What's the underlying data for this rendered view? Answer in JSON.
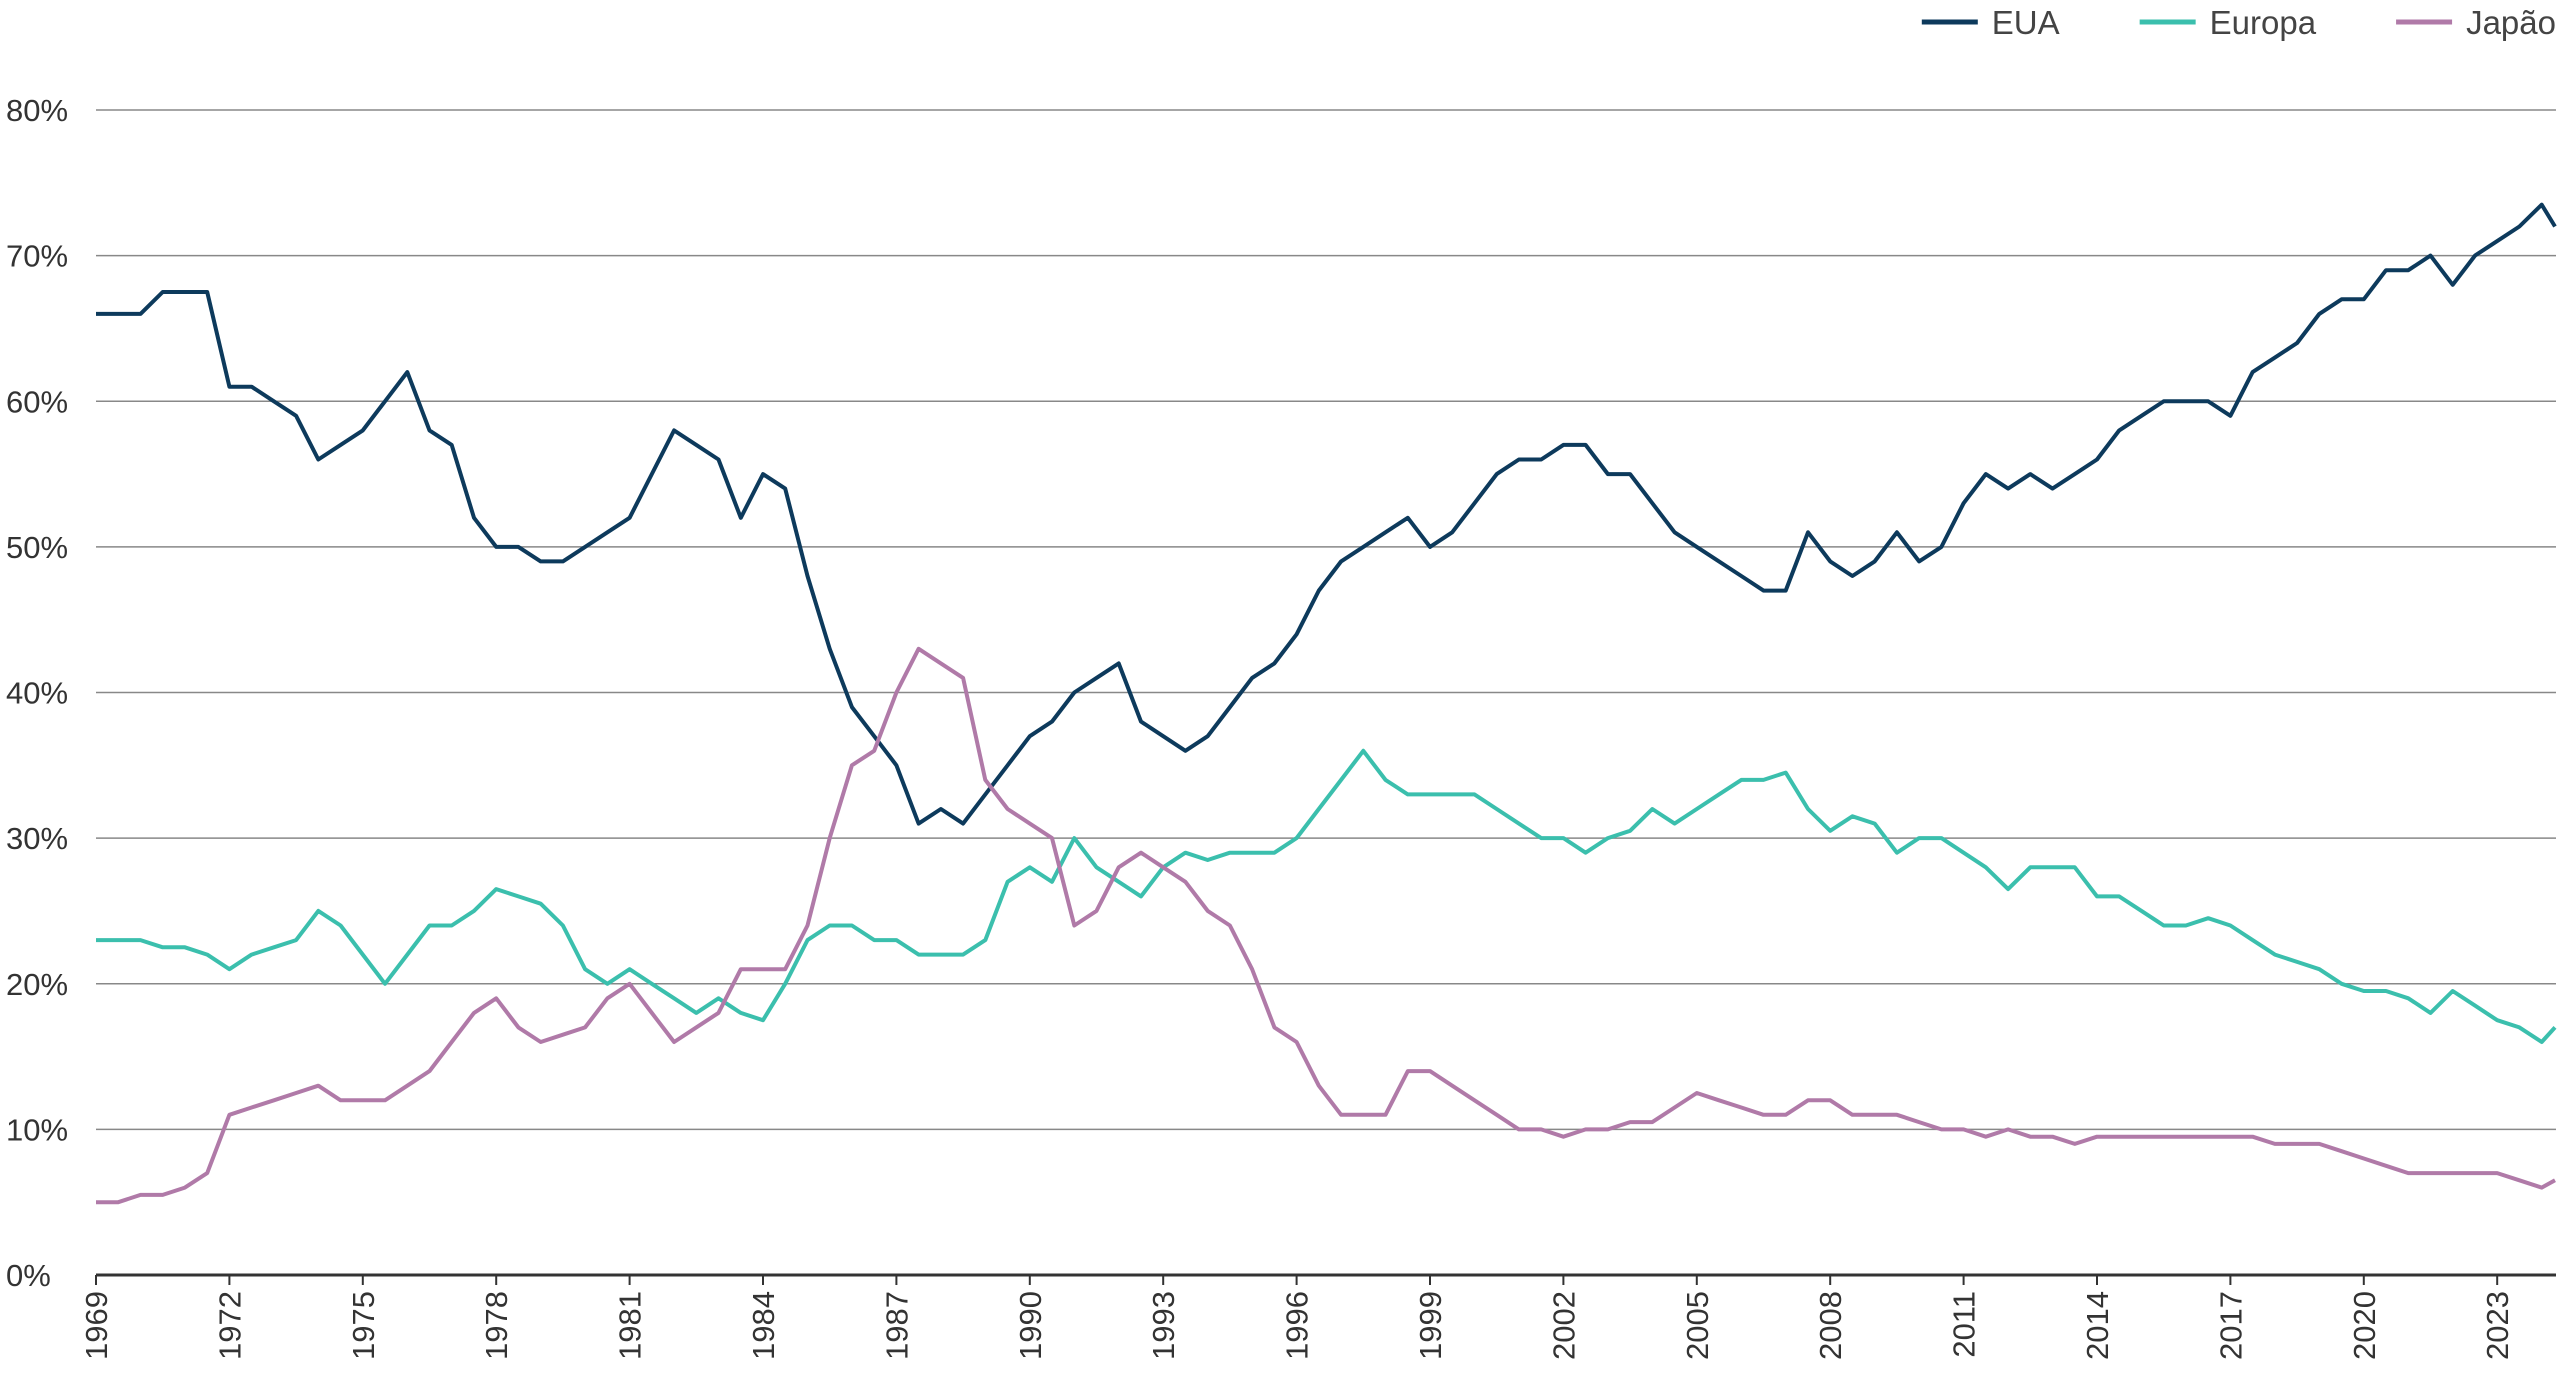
{
  "chart_data": {
    "type": "line",
    "x": [
      1969,
      1969.5,
      1970,
      1970.5,
      1971,
      1971.5,
      1972,
      1972.5,
      1973,
      1973.5,
      1974,
      1974.5,
      1975,
      1975.5,
      1976,
      1976.5,
      1977,
      1977.5,
      1978,
      1978.5,
      1979,
      1979.5,
      1980,
      1980.5,
      1981,
      1981.5,
      1982,
      1982.5,
      1983,
      1983.5,
      1984,
      1984.5,
      1985,
      1985.5,
      1986,
      1986.5,
      1987,
      1987.5,
      1988,
      1988.5,
      1989,
      1989.5,
      1990,
      1990.5,
      1991,
      1991.5,
      1992,
      1992.5,
      1993,
      1993.5,
      1994,
      1994.5,
      1995,
      1995.5,
      1996,
      1996.5,
      1997,
      1997.5,
      1998,
      1998.5,
      1999,
      1999.5,
      2000,
      2000.5,
      2001,
      2001.5,
      2002,
      2002.5,
      2003,
      2003.5,
      2004,
      2004.5,
      2005,
      2005.5,
      2006,
      2006.5,
      2007,
      2007.5,
      2008,
      2008.5,
      2009,
      2009.5,
      2010,
      2010.5,
      2011,
      2011.5,
      2012,
      2012.5,
      2013,
      2013.5,
      2014,
      2014.5,
      2015,
      2015.5,
      2016,
      2016.5,
      2017,
      2017.5,
      2018,
      2018.5,
      2019,
      2019.5,
      2020,
      2020.5,
      2021,
      2021.5,
      2022,
      2022.5,
      2023,
      2023.5,
      2024,
      2024.3
    ],
    "series": [
      {
        "name": "EUA",
        "color": "#0d3a5c",
        "values": [
          66,
          66,
          66,
          67.5,
          67.5,
          67.5,
          61,
          61,
          60,
          59,
          56,
          57,
          58,
          60,
          62,
          58,
          57,
          52,
          50,
          50,
          49,
          49,
          50,
          51,
          52,
          55,
          58,
          57,
          56,
          52,
          55,
          54,
          48,
          43,
          39,
          37,
          35,
          31,
          32,
          31,
          33,
          35,
          37,
          38,
          40,
          41,
          42,
          38,
          37,
          36,
          37,
          39,
          41,
          42,
          44,
          47,
          49,
          50,
          51,
          52,
          50,
          51,
          53,
          55,
          56,
          56,
          57,
          57,
          55,
          55,
          53,
          51,
          50,
          49,
          48,
          47,
          47,
          51,
          49,
          48,
          49,
          51,
          49,
          50,
          53,
          55,
          54,
          55,
          54,
          55,
          56,
          58,
          59,
          60,
          60,
          60,
          59,
          62,
          63,
          64,
          66,
          67,
          67,
          69,
          69,
          70,
          68,
          70,
          71,
          72,
          73.5,
          72
        ]
      },
      {
        "name": "Europa",
        "color": "#3bbfad",
        "values": [
          23,
          23,
          23,
          22.5,
          22.5,
          22,
          21,
          22,
          22.5,
          23,
          25,
          24,
          22,
          20,
          22,
          24,
          24,
          25,
          26.5,
          26,
          25.5,
          24,
          21,
          20,
          21,
          20,
          19,
          18,
          19,
          18,
          17.5,
          20,
          23,
          24,
          24,
          23,
          23,
          22,
          22,
          22,
          23,
          27,
          28,
          27,
          30,
          28,
          27,
          26,
          28,
          29,
          28.5,
          29,
          29,
          29,
          30,
          32,
          34,
          36,
          34,
          33,
          33,
          33,
          33,
          32,
          31,
          30,
          30,
          29,
          30,
          30.5,
          32,
          31,
          32,
          33,
          34,
          34,
          34.5,
          32,
          30.5,
          31.5,
          31,
          29,
          30,
          30,
          29,
          28,
          26.5,
          28,
          28,
          28,
          26,
          26,
          25,
          24,
          24,
          24.5,
          24,
          23,
          22,
          21.5,
          21,
          20,
          19.5,
          19.5,
          19,
          18,
          19.5,
          18.5,
          17.5,
          17,
          16,
          17
        ]
      },
      {
        "name": "Japão",
        "color": "#b07aa8",
        "values": [
          5,
          5,
          5.5,
          5.5,
          6,
          7,
          11,
          11.5,
          12,
          12.5,
          13,
          12,
          12,
          12,
          13,
          14,
          16,
          18,
          19,
          17,
          16,
          16.5,
          17,
          19,
          20,
          18,
          16,
          17,
          18,
          21,
          21,
          21,
          24,
          30,
          35,
          36,
          40,
          43,
          42,
          41,
          34,
          32,
          31,
          30,
          24,
          25,
          28,
          29,
          28,
          27,
          25,
          24,
          21,
          17,
          16,
          13,
          11,
          11,
          11,
          14,
          14,
          13,
          12,
          11,
          10,
          10,
          9.5,
          10,
          10,
          10.5,
          10.5,
          11.5,
          12.5,
          12,
          11.5,
          11,
          11,
          12,
          12,
          11,
          11,
          11,
          10.5,
          10,
          10,
          9.5,
          10,
          9.5,
          9.5,
          9,
          9.5,
          9.5,
          9.5,
          9.5,
          9.5,
          9.5,
          9.5,
          9.5,
          9,
          9,
          9,
          8.5,
          8,
          7.5,
          7,
          7,
          7,
          7,
          7,
          6.5,
          6,
          6.5
        ]
      }
    ],
    "xlim": [
      1969,
      2024.3
    ],
    "xticks": [
      1969,
      1972,
      1975,
      1978,
      1981,
      1984,
      1987,
      1990,
      1993,
      1996,
      1999,
      2002,
      2005,
      2008,
      2011,
      2014,
      2017,
      2020,
      2023
    ],
    "ylim": [
      0,
      80
    ],
    "yticks": [
      {
        "value": 0,
        "label": "0%"
      },
      {
        "value": 10,
        "label": "10%"
      },
      {
        "value": 20,
        "label": "20%"
      },
      {
        "value": 30,
        "label": "30%"
      },
      {
        "value": 40,
        "label": "40%"
      },
      {
        "value": 50,
        "label": "50%"
      },
      {
        "value": 60,
        "label": "60%"
      },
      {
        "value": 70,
        "label": "70%"
      },
      {
        "value": 80,
        "label": "80%"
      }
    ],
    "grid": true,
    "legend": "top-right"
  }
}
